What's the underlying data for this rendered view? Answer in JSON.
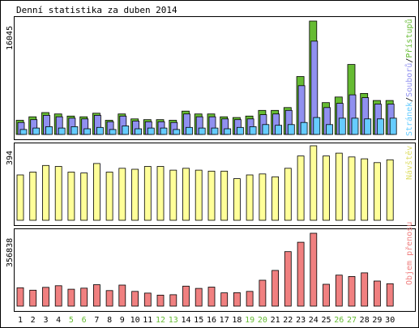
{
  "title": "Denní statistika za duben 2014",
  "days": [
    "1",
    "2",
    "3",
    "4",
    "5",
    "6",
    "7",
    "8",
    "9",
    "10",
    "11",
    "12",
    "13",
    "14",
    "15",
    "16",
    "17",
    "18",
    "19",
    "20",
    "21",
    "22",
    "23",
    "24",
    "25",
    "26",
    "27",
    "28",
    "29",
    "30"
  ],
  "weekend_days": [
    "5",
    "6",
    "12",
    "13",
    "19",
    "20",
    "26",
    "27"
  ],
  "colors": {
    "background": "#ffffff",
    "frame": "#000000",
    "hits": "#66bb33",
    "files": "#9090f0",
    "pages": "#66ccff",
    "visits": "#ffff99",
    "kbytes": "#f08080",
    "weekday_label": "#000000",
    "weekend_label": "#66bb33"
  },
  "chart_data": [
    {
      "type": "bar",
      "panel": "requests",
      "ymax_label": "16045",
      "ylim": [
        0,
        16045
      ],
      "legend": {
        "hits": "Přístupů",
        "separator": "/",
        "files": "Souborů",
        "pages": "Stránek"
      },
      "series": [
        {
          "name": "Přístupů",
          "key": "hits",
          "values": [
            2000,
            2500,
            3100,
            2900,
            2600,
            2500,
            3000,
            2000,
            2900,
            2200,
            2100,
            2100,
            2000,
            3300,
            2900,
            2900,
            2500,
            2400,
            2600,
            3400,
            3400,
            3800,
            8200,
            16045,
            4500,
            5300,
            9900,
            5800,
            4800,
            4800
          ]
        },
        {
          "name": "Souborů",
          "key": "files",
          "values": [
            1700,
            2100,
            2700,
            2500,
            2300,
            2200,
            2700,
            1800,
            2600,
            1900,
            1800,
            1800,
            1700,
            2900,
            2500,
            2500,
            2200,
            2100,
            2200,
            2800,
            2900,
            3400,
            6900,
            13200,
            3800,
            4400,
            5600,
            5200,
            4300,
            4300
          ]
        },
        {
          "name": "Stránek",
          "key": "pages",
          "values": [
            700,
            900,
            1100,
            900,
            1100,
            800,
            1000,
            700,
            1200,
            800,
            900,
            900,
            700,
            1000,
            900,
            900,
            800,
            1000,
            1100,
            1400,
            1300,
            1400,
            1700,
            2400,
            1400,
            2300,
            2300,
            2200,
            2200,
            2300
          ]
        }
      ]
    },
    {
      "type": "bar",
      "panel": "visits",
      "ymax_label": "394",
      "ylim": [
        0,
        394
      ],
      "legend": {
        "visits": "Návštěv"
      },
      "series": [
        {
          "name": "Návštěv",
          "key": "visits",
          "values": [
            240,
            255,
            290,
            285,
            255,
            250,
            300,
            255,
            275,
            270,
            285,
            285,
            265,
            275,
            265,
            260,
            260,
            220,
            240,
            245,
            230,
            275,
            340,
            394,
            340,
            355,
            335,
            325,
            305,
            320
          ]
        }
      ]
    },
    {
      "type": "bar",
      "panel": "kbytes",
      "ymax_label": "356838",
      "ylim": [
        0,
        356838
      ],
      "legend": {
        "kbytes": "Objem přenosu"
      },
      "series": [
        {
          "name": "Objem přenosu",
          "key": "kbytes",
          "values": [
            90000,
            78000,
            92000,
            100000,
            83000,
            88000,
            105000,
            76000,
            103000,
            72000,
            64000,
            54000,
            56000,
            98000,
            87000,
            93000,
            65000,
            66000,
            72000,
            127000,
            175000,
            267000,
            313000,
            356838,
            107000,
            152000,
            145000,
            163000,
            123000,
            110000
          ]
        }
      ]
    }
  ]
}
